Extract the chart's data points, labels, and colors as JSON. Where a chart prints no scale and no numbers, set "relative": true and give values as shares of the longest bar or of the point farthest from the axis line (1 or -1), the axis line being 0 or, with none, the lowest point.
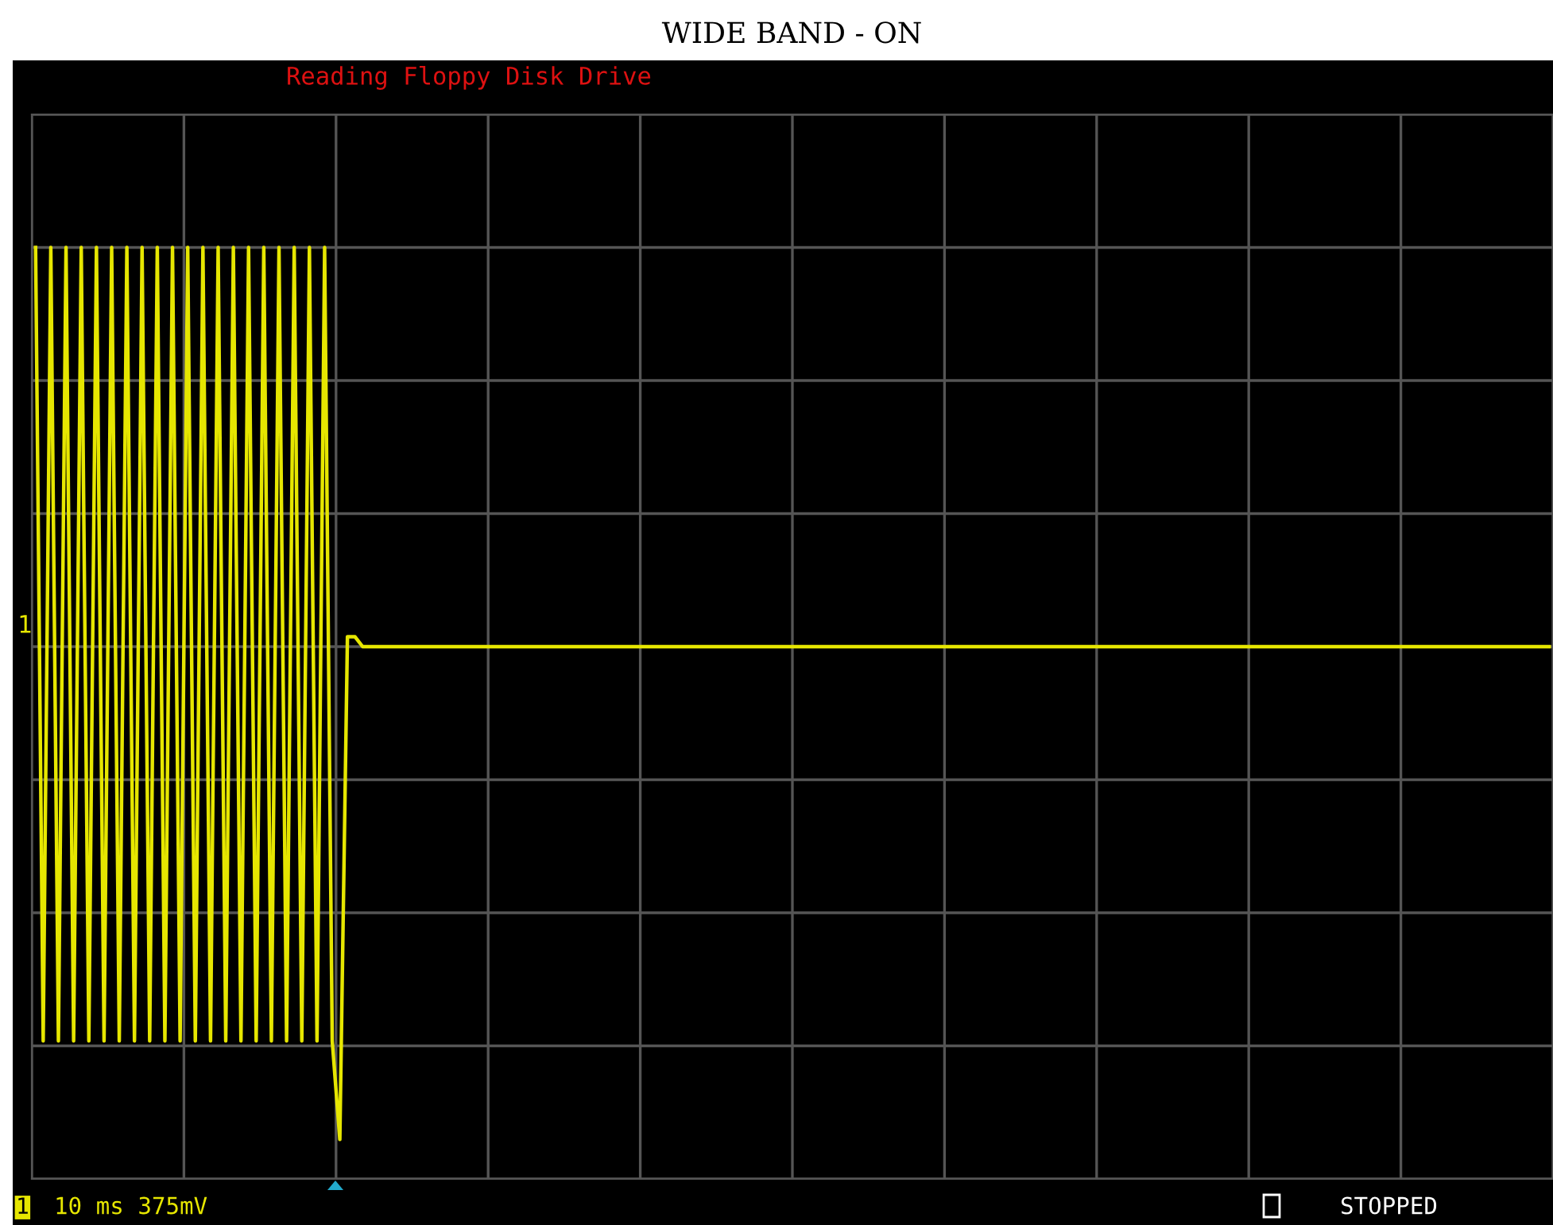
{
  "chart_data": {
    "type": "line",
    "title": "WIDE BAND - ON",
    "annotations": [
      "Reading Floppy Disk Drive",
      "1",
      "1",
      "10 ms 375mV",
      "STOPPED"
    ],
    "relative": true,
    "categories": [
      null,
      null,
      null,
      null,
      null,
      null,
      null,
      null,
      null,
      null,
      null,
      null,
      null,
      null,
      null,
      null,
      null,
      null,
      null,
      null,
      null,
      null,
      null,
      null,
      null,
      null,
      null,
      null,
      null,
      null,
      null,
      null,
      null,
      null,
      null,
      null,
      null,
      null,
      null,
      null,
      null,
      null,
      null,
      null,
      null,
      null,
      null,
      null,
      null,
      null,
      null,
      null,
      null,
      null,
      null,
      null,
      null,
      null,
      null,
      null,
      null,
      null,
      null,
      null,
      null,
      null,
      null,
      null,
      null,
      null,
      null,
      null,
      null,
      null,
      null,
      null,
      null,
      null,
      null,
      null,
      null,
      null,
      null,
      null,
      null,
      null,
      null,
      null,
      null,
      null,
      null,
      null,
      null,
      null,
      null,
      null,
      null,
      null,
      null,
      null,
      null,
      null,
      null,
      null,
      null,
      null,
      null,
      null,
      null,
      null,
      null,
      null,
      null,
      null,
      null,
      null,
      null,
      null,
      null,
      null,
      null,
      null,
      null,
      null,
      null,
      null,
      null,
      null,
      null,
      null,
      null,
      null,
      null,
      null,
      null,
      null,
      null,
      null,
      null,
      null,
      null,
      null,
      null,
      null,
      null,
      null,
      null,
      null,
      null,
      null,
      null,
      null,
      null,
      null,
      null,
      null,
      null,
      null,
      null,
      null,
      null,
      null,
      null,
      null,
      null,
      null,
      null,
      null,
      null,
      null,
      null,
      null,
      null,
      null,
      null,
      null,
      null,
      null,
      null,
      null,
      null,
      null,
      null,
      null,
      null,
      null,
      null,
      null,
      null,
      null,
      null,
      null,
      null,
      null,
      null,
      null,
      null,
      null,
      null,
      null
    ],
    "series": [
      {
        "color": "#e6e600",
        "values": [
          0.81,
          -0.8,
          0.81,
          -0.8,
          0.81,
          -0.8,
          0.81,
          -0.8,
          0.81,
          -0.8,
          0.81,
          -0.8,
          0.81,
          -0.8,
          0.81,
          -0.8,
          0.81,
          -0.8,
          0.81,
          -0.8,
          0.81,
          -0.8,
          0.81,
          -0.8,
          0.81,
          -0.8,
          0.81,
          -0.8,
          0.81,
          -0.8,
          0.81,
          -0.8,
          0.81,
          -0.8,
          0.81,
          -0.8,
          0.81,
          -0.8,
          0.81,
          -0.8,
          -1,
          0.02,
          0.02,
          0,
          0,
          0,
          0,
          0,
          0,
          0,
          0,
          0,
          0,
          0,
          0,
          0,
          0,
          0,
          0,
          0,
          0,
          0,
          0,
          0,
          0,
          0,
          0,
          0,
          0,
          0,
          0,
          0,
          0,
          0,
          0,
          0,
          0,
          0,
          0,
          0,
          0,
          0,
          0,
          0,
          0,
          0,
          0,
          0,
          0,
          0,
          0,
          0,
          0,
          0,
          0,
          0,
          0,
          0,
          0,
          0,
          0,
          0,
          0,
          0,
          0,
          0,
          0,
          0,
          0,
          0,
          0,
          0,
          0,
          0,
          0,
          0,
          0,
          0,
          0,
          0,
          0,
          0,
          0,
          0,
          0,
          0,
          0,
          0,
          0,
          0,
          0,
          0,
          0,
          0,
          0,
          0,
          0,
          0,
          0,
          0,
          0,
          0,
          0,
          0,
          0,
          0,
          0,
          0,
          0,
          0,
          0,
          0,
          0,
          0,
          0,
          0,
          0,
          0,
          0,
          0,
          0,
          0,
          0,
          0,
          0,
          0,
          0,
          0,
          0,
          0,
          0,
          0,
          0,
          0,
          0,
          0,
          0,
          0,
          0,
          0,
          0,
          0,
          0,
          0,
          0,
          0,
          0,
          0,
          0,
          0,
          0,
          0,
          0,
          0,
          0,
          0,
          0,
          0,
          0,
          0
        ]
      }
    ],
    "grid": true
  }
}
